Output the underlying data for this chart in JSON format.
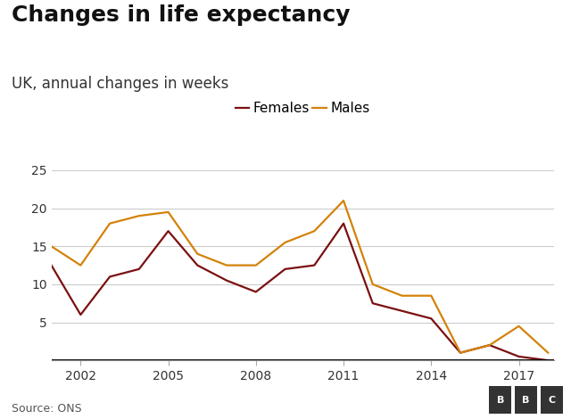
{
  "title": "Changes in life expectancy",
  "subtitle": "UK, annual changes in weeks",
  "source": "Source: ONS",
  "females_color": "#7B1010",
  "males_color": "#D4820A",
  "females": {
    "years": [
      2001,
      2002,
      2003,
      2004,
      2005,
      2006,
      2007,
      2008,
      2009,
      2010,
      2011,
      2012,
      2013,
      2014,
      2015,
      2016,
      2017,
      2018
    ],
    "values": [
      12.5,
      6.0,
      11.0,
      12.0,
      17.0,
      12.5,
      10.5,
      9.0,
      12.0,
      12.5,
      18.0,
      7.5,
      6.5,
      5.5,
      1.0,
      2.0,
      0.5,
      0.0
    ]
  },
  "males": {
    "years": [
      2001,
      2002,
      2003,
      2004,
      2005,
      2006,
      2007,
      2008,
      2009,
      2010,
      2011,
      2012,
      2013,
      2014,
      2015,
      2016,
      2017,
      2018
    ],
    "values": [
      15.0,
      12.5,
      18.0,
      19.0,
      19.5,
      14.0,
      12.5,
      12.5,
      15.5,
      17.0,
      21.0,
      10.0,
      8.5,
      8.5,
      1.0,
      2.0,
      4.5,
      1.0
    ]
  },
  "xlim": [
    2001,
    2018.2
  ],
  "ylim": [
    0,
    27
  ],
  "yticks": [
    0,
    5,
    10,
    15,
    20,
    25
  ],
  "xticks": [
    2002,
    2005,
    2008,
    2011,
    2014,
    2017
  ],
  "grid_color": "#cccccc",
  "bg_color": "#ffffff",
  "title_fontsize": 18,
  "subtitle_fontsize": 12,
  "tick_fontsize": 10,
  "legend_fontsize": 11,
  "source_fontsize": 9
}
